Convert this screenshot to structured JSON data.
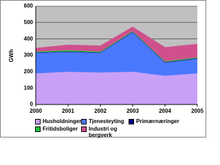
{
  "chart_data": {
    "type": "stacked-area",
    "y_label": "GWh",
    "x": [
      2000,
      2001,
      2002,
      2003,
      2004,
      2005
    ],
    "xlim": [
      2000,
      2005
    ],
    "xticks": [
      2000,
      2001,
      2002,
      2003,
      2004,
      2005
    ],
    "ylim": [
      0,
      600
    ],
    "yticks": [
      0,
      100,
      200,
      300,
      400,
      500,
      600
    ],
    "grid": true,
    "series": [
      {
        "name": "Husholdninger",
        "color": "#c8a0f8",
        "values": [
          190,
          200,
          195,
          200,
          175,
          190
        ]
      },
      {
        "name": "Tjenesteyting",
        "color": "#4a78ff",
        "values": [
          125,
          120,
          120,
          240,
          80,
          90
        ]
      },
      {
        "name": "Primærnæringer",
        "color": "#000080",
        "values": [
          3,
          3,
          3,
          3,
          3,
          3
        ]
      },
      {
        "name": "Fritidsboliger",
        "color": "#20c040",
        "values": [
          5,
          8,
          5,
          5,
          5,
          5
        ]
      },
      {
        "name": "Industri og bergverk",
        "color": "#d0508c",
        "values": [
          22,
          34,
          37,
          27,
          87,
          82
        ]
      }
    ]
  }
}
